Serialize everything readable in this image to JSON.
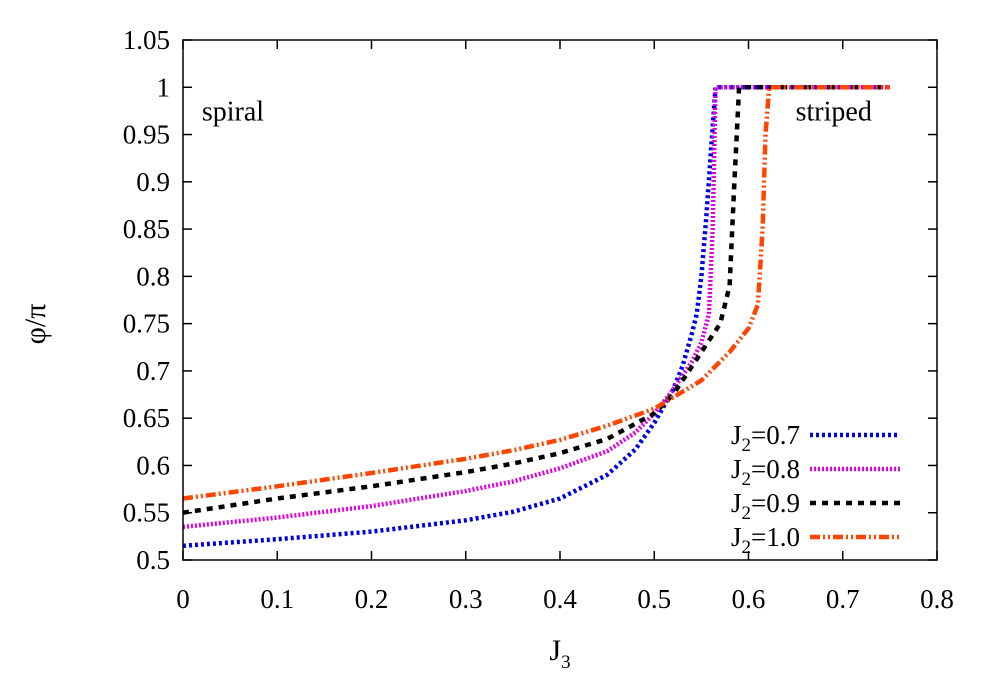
{
  "chart_data": {
    "type": "line",
    "title": "",
    "xlabel": {
      "main": "J",
      "sub": "3"
    },
    "ylabel": "φ/π",
    "xlim": [
      0,
      0.8
    ],
    "ylim": [
      0.5,
      1.05
    ],
    "xticks": [
      "0",
      "0.1",
      "0.2",
      "0.3",
      "0.4",
      "0.5",
      "0.6",
      "0.7",
      "0.8"
    ],
    "yticks": [
      "0.5",
      "0.55",
      "0.6",
      "0.65",
      "0.7",
      "0.75",
      "0.8",
      "0.85",
      "0.9",
      "0.95",
      "1",
      "1.05"
    ],
    "grid": false,
    "legend_position": "bottom-right",
    "annotations": [
      {
        "text": "spiral",
        "x": 0.02,
        "y": 0.965
      },
      {
        "text": "striped",
        "x": 0.65,
        "y": 0.965
      }
    ],
    "series": [
      {
        "name": "J2=0.7",
        "label_main": "J",
        "label_sub": "2",
        "label_rest": "=0.7",
        "color": "#0000e0",
        "dash": "3,3",
        "x": [
          0,
          0.1,
          0.2,
          0.3,
          0.35,
          0.4,
          0.45,
          0.48,
          0.5,
          0.52,
          0.53,
          0.54,
          0.545,
          0.55,
          0.555,
          0.56,
          0.565,
          0.58,
          0.65,
          0.75
        ],
        "y": [
          0.515,
          0.522,
          0.53,
          0.542,
          0.551,
          0.565,
          0.59,
          0.617,
          0.645,
          0.68,
          0.705,
          0.74,
          0.76,
          0.8,
          0.86,
          0.93,
          1.0,
          1.0,
          1.0,
          1.0
        ]
      },
      {
        "name": "J2=0.8",
        "label_main": "J",
        "label_sub": "2",
        "label_rest": "=0.8",
        "color": "#e000e0",
        "dash": "2,2",
        "x": [
          0,
          0.1,
          0.2,
          0.3,
          0.35,
          0.4,
          0.45,
          0.48,
          0.5,
          0.52,
          0.54,
          0.55,
          0.558,
          0.562,
          0.565,
          0.575,
          0.65,
          0.75
        ],
        "y": [
          0.535,
          0.545,
          0.557,
          0.573,
          0.583,
          0.597,
          0.615,
          0.635,
          0.655,
          0.68,
          0.71,
          0.73,
          0.76,
          0.85,
          1.0,
          1.0,
          1.0,
          1.0
        ]
      },
      {
        "name": "J2=0.9",
        "label_main": "J",
        "label_sub": "2",
        "label_rest": "=0.9",
        "color": "#000000",
        "dash": "6,6",
        "x": [
          0,
          0.1,
          0.2,
          0.3,
          0.35,
          0.4,
          0.45,
          0.5,
          0.52,
          0.54,
          0.56,
          0.57,
          0.58,
          0.585,
          0.59,
          0.6,
          0.65,
          0.75
        ],
        "y": [
          0.55,
          0.565,
          0.578,
          0.593,
          0.602,
          0.613,
          0.628,
          0.655,
          0.675,
          0.705,
          0.735,
          0.75,
          0.79,
          0.9,
          1.0,
          1.0,
          1.0,
          1.0
        ]
      },
      {
        "name": "J2=1.0",
        "label_main": "J",
        "label_sub": "2",
        "label_rest": "=1.0",
        "color": "#ff4500",
        "dash": "10,3,2,3,2,3",
        "x": [
          0,
          0.1,
          0.2,
          0.3,
          0.35,
          0.4,
          0.45,
          0.5,
          0.55,
          0.58,
          0.6,
          0.61,
          0.615,
          0.618,
          0.622,
          0.63,
          0.65,
          0.75
        ],
        "y": [
          0.565,
          0.578,
          0.592,
          0.607,
          0.616,
          0.627,
          0.642,
          0.66,
          0.69,
          0.72,
          0.745,
          0.77,
          0.85,
          0.95,
          1.0,
          1.0,
          1.0,
          1.0
        ]
      }
    ]
  }
}
